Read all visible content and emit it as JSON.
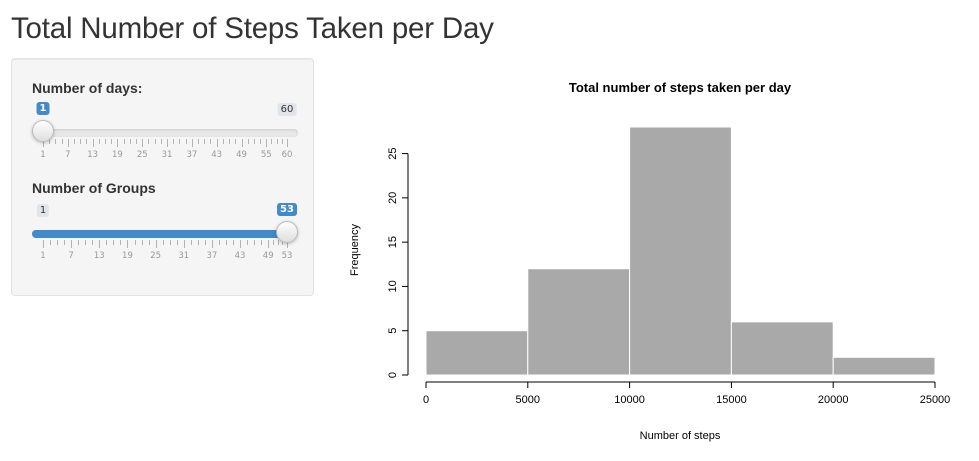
{
  "page": {
    "title": "Total Number of Steps Taken per Day"
  },
  "controls": {
    "days": {
      "label": "Number of days:",
      "min": 1,
      "max": 60,
      "value": 1,
      "min_text": "1",
      "max_text": "60",
      "value_text": "1",
      "ticks": [
        "1",
        "7",
        "13",
        "19",
        "25",
        "31",
        "37",
        "43",
        "49",
        "55",
        "60"
      ],
      "show_bar": false
    },
    "groups": {
      "label": "Number of Groups",
      "min": 1,
      "max": 53,
      "value": 53,
      "min_text": "1",
      "max_text": "53",
      "value_text": "53",
      "ticks": [
        "1",
        "7",
        "13",
        "19",
        "25",
        "31",
        "37",
        "43",
        "49",
        "53"
      ],
      "show_bar": true
    }
  },
  "colors": {
    "accent": "#428bca",
    "bar_fill": "#a9a9a9"
  },
  "chart_data": {
    "type": "bar",
    "title": "Total number of steps taken per day",
    "xlabel": "Number of steps",
    "ylabel": "Frequency",
    "bins": [
      [
        0,
        5000
      ],
      [
        5000,
        10000
      ],
      [
        10000,
        15000
      ],
      [
        15000,
        20000
      ],
      [
        20000,
        25000
      ]
    ],
    "values": [
      5,
      12,
      28,
      6,
      2
    ],
    "xlim": [
      0,
      25000
    ],
    "ylim": [
      0,
      28
    ],
    "xticks": [
      "0",
      "5000",
      "10000",
      "15000",
      "20000",
      "25000"
    ],
    "xtick_values": [
      0,
      5000,
      10000,
      15000,
      20000,
      25000
    ],
    "yticks": [
      "0",
      "5",
      "10",
      "15",
      "20",
      "25"
    ],
    "ytick_values": [
      0,
      5,
      10,
      15,
      20,
      25
    ],
    "grid": false,
    "legend": "none"
  }
}
